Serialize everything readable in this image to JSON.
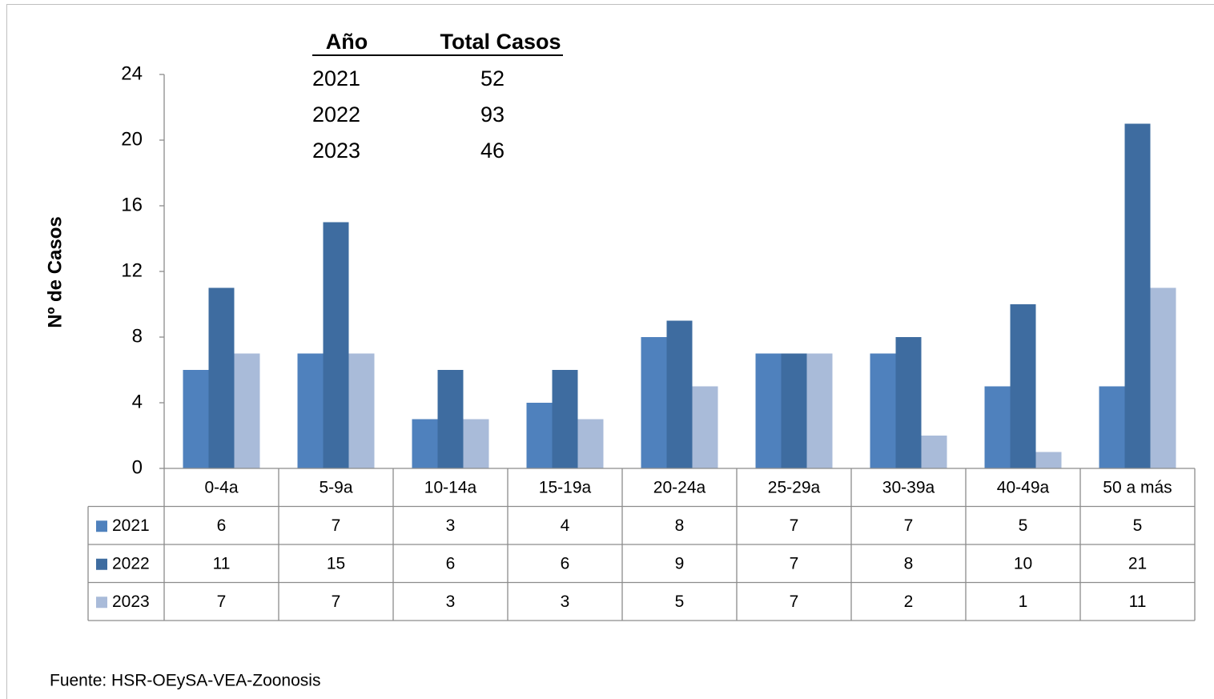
{
  "chart_data": {
    "type": "bar",
    "y_label": "Nº  de Casos",
    "categories": [
      "0-4a",
      "5-9a",
      "10-14a",
      "15-19a",
      "20-24a",
      "25-29a",
      "30-39a",
      "40-49a",
      "50 a más"
    ],
    "series": [
      {
        "name": "2021",
        "color": "#4f81bd",
        "values": [
          6,
          7,
          3,
          4,
          8,
          7,
          7,
          5,
          5
        ]
      },
      {
        "name": "2022",
        "color": "#3e6ca0",
        "values": [
          11,
          15,
          6,
          6,
          9,
          7,
          8,
          10,
          21
        ]
      },
      {
        "name": "2023",
        "color": "#a9bbd9",
        "values": [
          7,
          7,
          3,
          3,
          5,
          7,
          2,
          1,
          11
        ]
      }
    ],
    "ylim": [
      0,
      24
    ],
    "yticks": [
      0,
      4,
      8,
      12,
      16,
      20,
      24
    ],
    "grid": false,
    "summary": {
      "headers": [
        "Año",
        "Total Casos"
      ],
      "rows": [
        [
          "2021",
          52
        ],
        [
          "2022",
          93
        ],
        [
          "2023",
          46
        ]
      ]
    },
    "source": "Fuente: HSR-OEySA-VEA-Zoonosis"
  }
}
